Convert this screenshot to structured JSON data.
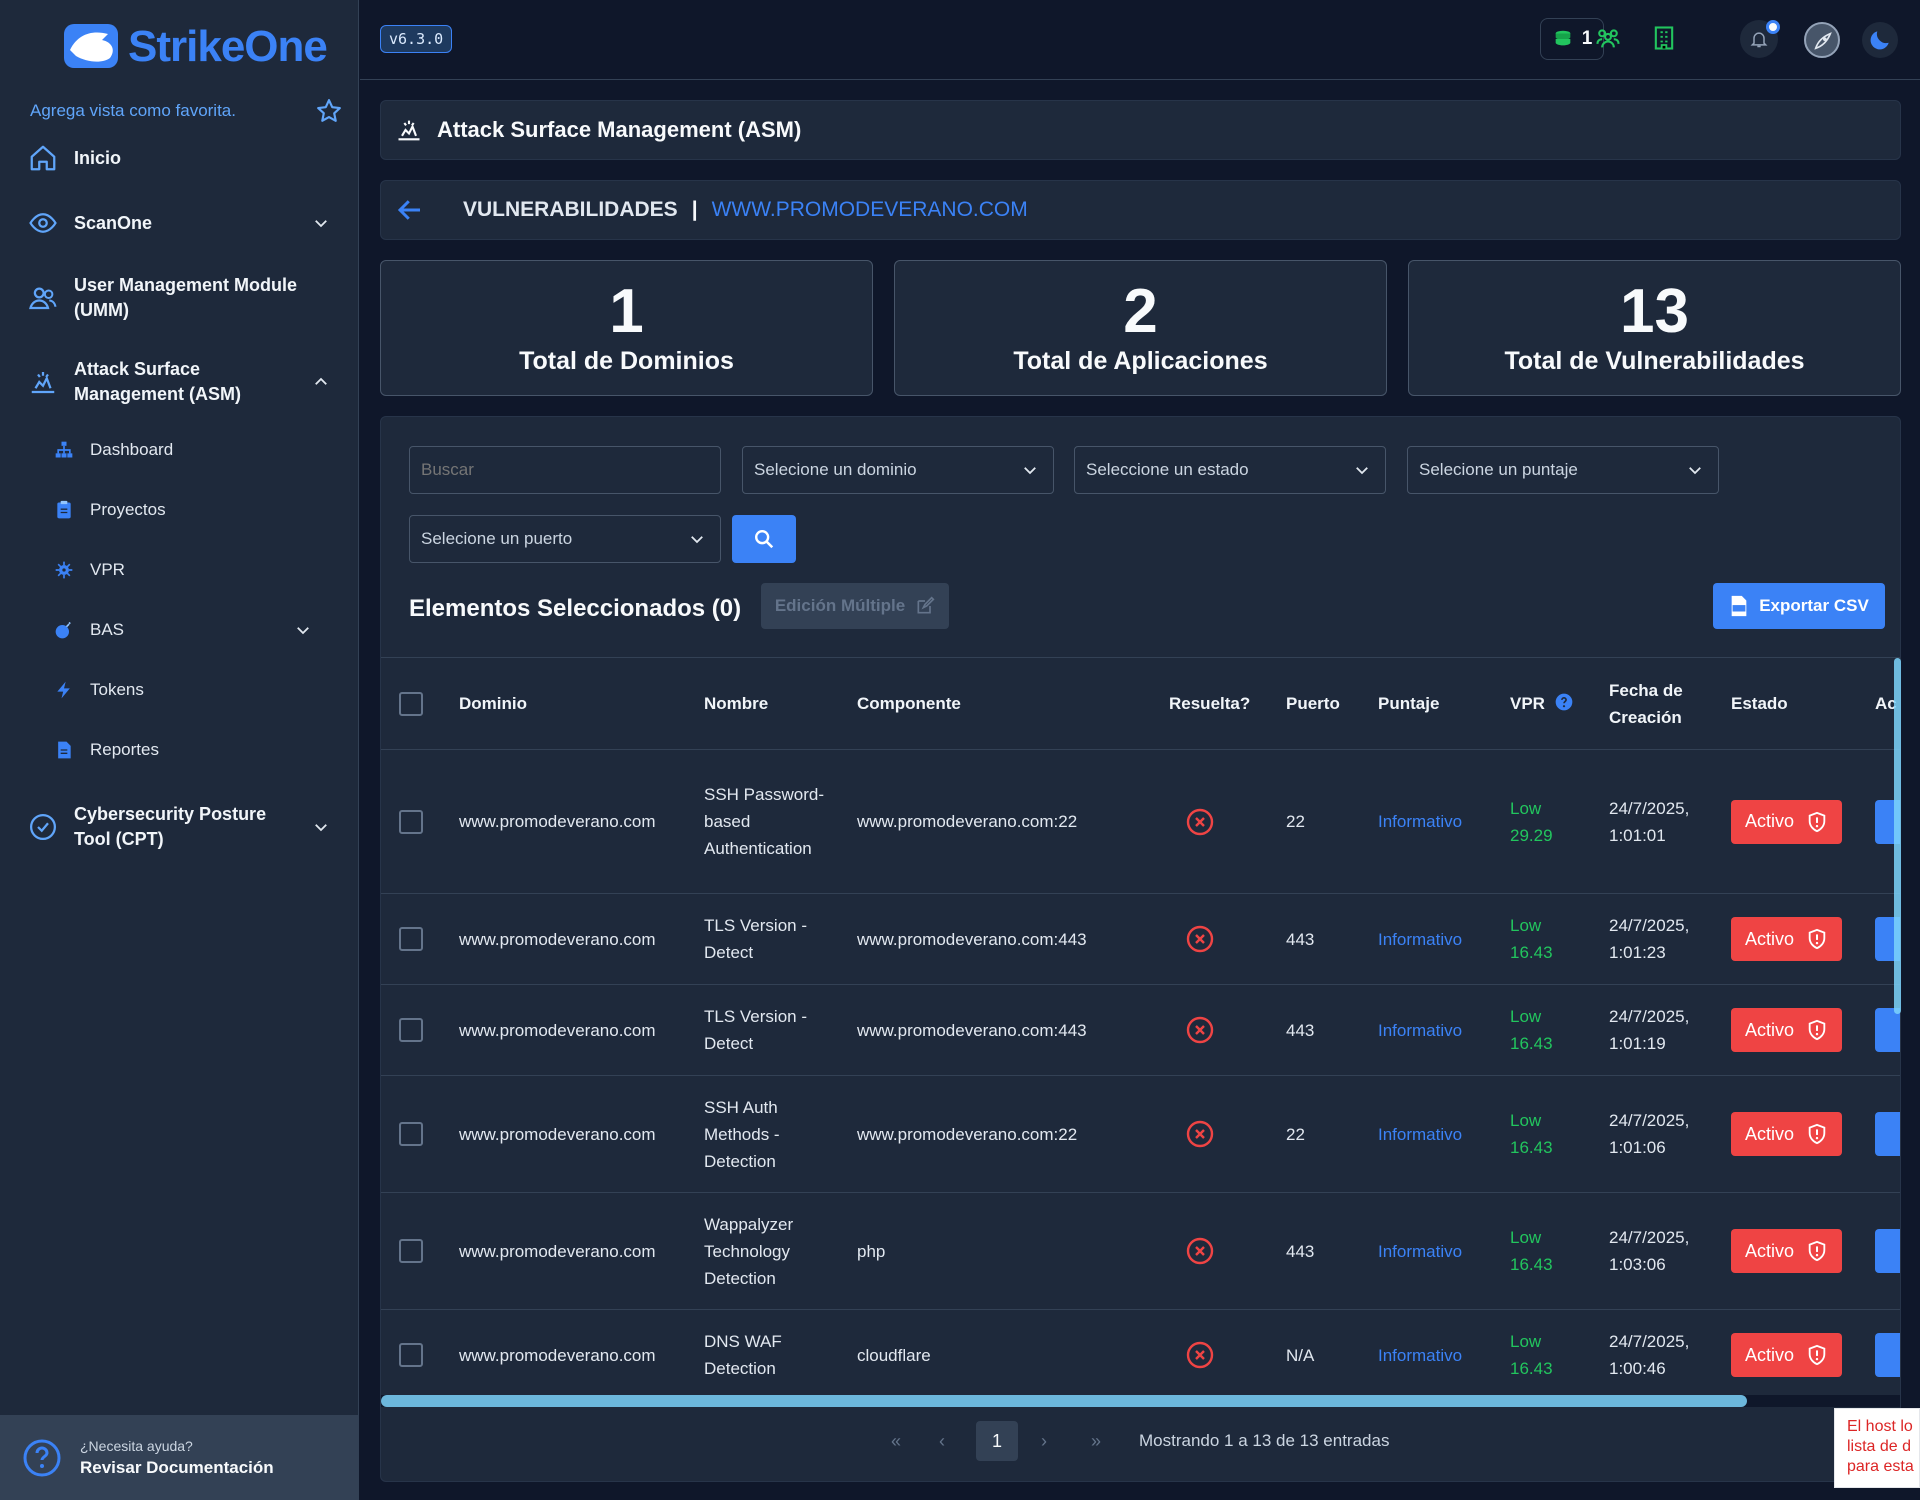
{
  "sidebar": {
    "brand": "StrikeOne",
    "favorite_text": "Agrega vista como favorita.",
    "items": [
      {
        "label": "Inicio",
        "icon": "home-icon"
      },
      {
        "label": "ScanOne",
        "icon": "eye-icon"
      },
      {
        "label": "User Management Module (UMM)",
        "icon": "users-icon"
      },
      {
        "label": "Attack Surface Management (ASM)",
        "icon": "asm-icon"
      },
      {
        "label": "Cybersecurity Posture Tool (CPT)",
        "icon": "check-circle-icon"
      }
    ],
    "sub_items": [
      {
        "label": "Dashboard",
        "icon": "sitemap-icon"
      },
      {
        "label": "Proyectos",
        "icon": "clipboard-icon"
      },
      {
        "label": "VPR",
        "icon": "virus-icon"
      },
      {
        "label": "BAS",
        "icon": "bomb-icon"
      },
      {
        "label": "Tokens",
        "icon": "bolt-icon"
      },
      {
        "label": "Reportes",
        "icon": "file-icon"
      }
    ],
    "help_question": "¿Necesita ayuda?",
    "help_link": "Revisar Documentación"
  },
  "topbar": {
    "version": "v6.3.0",
    "credits": "1"
  },
  "header": {
    "title": "Attack Surface Management (ASM)"
  },
  "breadcrumb": {
    "section": "VULNERABILIDADES",
    "separator": "|",
    "domain": "WWW.PROMODEVERANO.COM"
  },
  "stats": [
    {
      "value": "1",
      "caption": "Total de Dominios"
    },
    {
      "value": "2",
      "caption": "Total de Aplicaciones"
    },
    {
      "value": "13",
      "caption": "Total de Vulnerabilidades"
    }
  ],
  "filters": {
    "search_placeholder": "Buscar",
    "domain": "Selecione un dominio",
    "status": "Seleccione un estado",
    "score": "Selecione un puntaje",
    "port": "Selecione un puerto"
  },
  "toolbar": {
    "selected": "Elementos Seleccionados (0)",
    "multi_edit": "Edición Múltiple",
    "export": "Exportar CSV"
  },
  "table": {
    "headers": [
      "Dominio",
      "Nombre",
      "Componente",
      "Resuelta?",
      "Puerto",
      "Puntaje",
      "VPR",
      "Fecha de Creación",
      "Estado",
      "Ac"
    ],
    "rows": [
      {
        "dominio": "www.promodeverano.com",
        "nombre": "SSH Password-based Authentication",
        "componente": "www.promodeverano.com:22",
        "puerto": "22",
        "puntaje": "Informativo",
        "vpr_level": "Low",
        "vpr_score": "29.29",
        "fecha": "24/7/2025,",
        "hora": "1:01:01",
        "estado": "Activo"
      },
      {
        "dominio": "www.promodeverano.com",
        "nombre": "TLS Version - Detect",
        "componente": "www.promodeverano.com:443",
        "puerto": "443",
        "puntaje": "Informativo",
        "vpr_level": "Low",
        "vpr_score": "16.43",
        "fecha": "24/7/2025,",
        "hora": "1:01:23",
        "estado": "Activo"
      },
      {
        "dominio": "www.promodeverano.com",
        "nombre": "TLS Version - Detect",
        "componente": "www.promodeverano.com:443",
        "puerto": "443",
        "puntaje": "Informativo",
        "vpr_level": "Low",
        "vpr_score": "16.43",
        "fecha": "24/7/2025,",
        "hora": "1:01:19",
        "estado": "Activo"
      },
      {
        "dominio": "www.promodeverano.com",
        "nombre": "SSH Auth Methods - Detection",
        "componente": "www.promodeverano.com:22",
        "puerto": "22",
        "puntaje": "Informativo",
        "vpr_level": "Low",
        "vpr_score": "16.43",
        "fecha": "24/7/2025,",
        "hora": "1:01:06",
        "estado": "Activo"
      },
      {
        "dominio": "www.promodeverano.com",
        "nombre": "Wappalyzer Technology Detection",
        "componente": "php",
        "puerto": "443",
        "puntaje": "Informativo",
        "vpr_level": "Low",
        "vpr_score": "16.43",
        "fecha": "24/7/2025,",
        "hora": "1:03:06",
        "estado": "Activo"
      },
      {
        "dominio": "www.promodeverano.com",
        "nombre": "DNS WAF Detection",
        "componente": "cloudflare",
        "puerto": "N/A",
        "puntaje": "Informativo",
        "vpr_level": "Low",
        "vpr_score": "16.43",
        "fecha": "24/7/2025,",
        "hora": "1:00:46",
        "estado": "Activo"
      }
    ]
  },
  "pagination": {
    "first": "«",
    "prev": "‹",
    "current": "1",
    "next": "›",
    "last": "»",
    "summary": "Mostrando 1 a 13 de 13 entradas"
  },
  "toast": {
    "lines": [
      "El host lo",
      "lista de d",
      "para esta"
    ]
  },
  "colors": {
    "accent": "#3b82f6",
    "danger": "#ef4444",
    "success": "#22c55e",
    "sidebar_bg": "#1e293b",
    "page_bg": "#0f172a"
  }
}
